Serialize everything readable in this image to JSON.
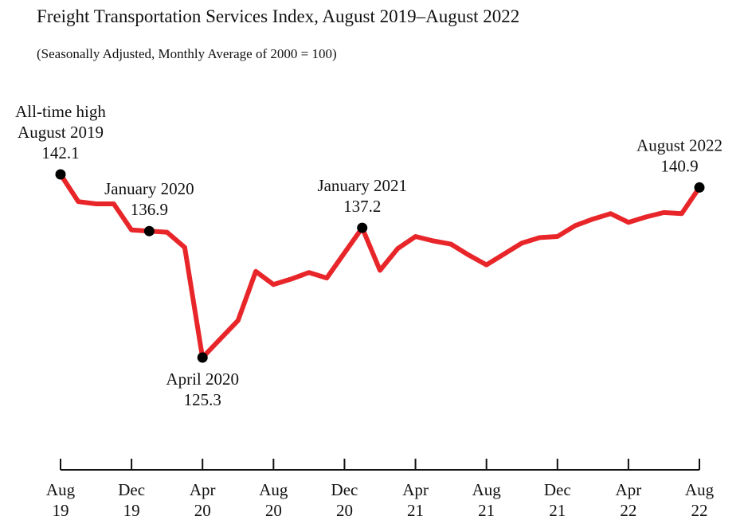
{
  "chart_data": {
    "type": "line",
    "title": "Freight Transportation Services Index, August 2019–August 2022",
    "subtitle": "(Seasonally Adjusted, Monthly Average of 2000 = 100)",
    "xlabel": "",
    "ylabel": "",
    "x": [
      "Aug 2019",
      "Sep 2019",
      "Oct 2019",
      "Nov 2019",
      "Dec 2019",
      "Jan 2020",
      "Feb 2020",
      "Mar 2020",
      "Apr 2020",
      "May 2020",
      "Jun 2020",
      "Jul 2020",
      "Aug 2020",
      "Sep 2020",
      "Oct 2020",
      "Nov 2020",
      "Dec 2020",
      "Jan 2021",
      "Feb 2021",
      "Mar 2021",
      "Apr 2021",
      "May 2021",
      "Jun 2021",
      "Jul 2021",
      "Aug 2021",
      "Sep 2021",
      "Oct 2021",
      "Nov 2021",
      "Dec 2021",
      "Jan 2022",
      "Feb 2022",
      "Mar 2022",
      "Apr 2022",
      "May 2022",
      "Jun 2022",
      "Jul 2022",
      "Aug 2022"
    ],
    "series": [
      {
        "values": [
          142.1,
          139.6,
          139.4,
          139.4,
          137.0,
          136.9,
          136.8,
          135.4,
          125.3,
          127.0,
          128.7,
          133.2,
          132.0,
          132.5,
          133.1,
          132.6,
          134.9,
          137.2,
          133.3,
          135.3,
          136.4,
          136.0,
          135.7,
          134.7,
          133.8,
          134.8,
          135.8,
          136.3,
          136.4,
          137.4,
          138.0,
          138.5,
          137.7,
          138.2,
          138.6,
          138.5,
          140.9
        ]
      }
    ],
    "ylim": [
      120,
      145
    ],
    "x_ticks": [
      {
        "index": 0,
        "line1": "Aug",
        "line2": "19"
      },
      {
        "index": 4,
        "line1": "Dec",
        "line2": "19"
      },
      {
        "index": 8,
        "line1": "Apr",
        "line2": "20"
      },
      {
        "index": 12,
        "line1": "Aug",
        "line2": "20"
      },
      {
        "index": 16,
        "line1": "Dec",
        "line2": "20"
      },
      {
        "index": 20,
        "line1": "Apr",
        "line2": "21"
      },
      {
        "index": 24,
        "line1": "Aug",
        "line2": "21"
      },
      {
        "index": 28,
        "line1": "Dec",
        "line2": "21"
      },
      {
        "index": 32,
        "line1": "Apr",
        "line2": "22"
      },
      {
        "index": 36,
        "line1": "Aug",
        "line2": "22"
      }
    ],
    "annotations": [
      {
        "index": 0,
        "lines": [
          "All-time high",
          "August 2019",
          "142.1"
        ],
        "position": "above"
      },
      {
        "index": 5,
        "lines": [
          "January 2020",
          "136.9"
        ],
        "position": "above"
      },
      {
        "index": 8,
        "lines": [
          "April 2020",
          "125.3"
        ],
        "position": "below"
      },
      {
        "index": 17,
        "lines": [
          "January 2021",
          "137.2"
        ],
        "position": "above"
      },
      {
        "index": 36,
        "lines": [
          "August 2022",
          "140.9"
        ],
        "position": "above"
      }
    ],
    "grid": false,
    "legend": "none",
    "line_color": "#e8262a",
    "marker_color": "#000000"
  }
}
